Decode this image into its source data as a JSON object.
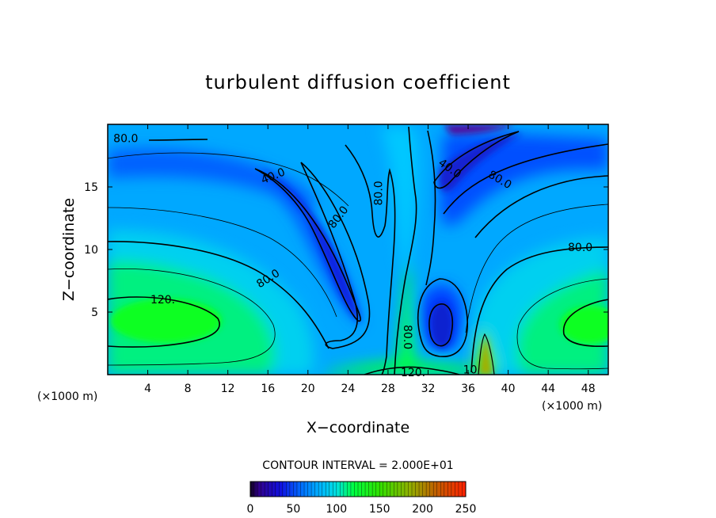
{
  "chart_data": {
    "type": "heatmap",
    "title": "turbulent diffusion coefficient",
    "xlabel": "X−coordinate",
    "ylabel": "Z−coordinate",
    "x_unit": "(×1000 m)",
    "y_unit": "(×1000 m)",
    "x_ticks": [
      4,
      8,
      12,
      16,
      20,
      24,
      28,
      32,
      36,
      40,
      44,
      48
    ],
    "y_ticks": [
      5,
      10,
      15
    ],
    "xlim": [
      0,
      50
    ],
    "ylim": [
      0,
      20
    ],
    "contour_interval_text": "CONTOUR INTERVAL = 2.000E+01",
    "colorbar": {
      "range": [
        0,
        250
      ],
      "ticks": [
        0,
        50,
        100,
        150,
        200,
        250
      ],
      "stops": [
        {
          "value": 0,
          "color": "#100020"
        },
        {
          "value": 10,
          "color": "#30008a"
        },
        {
          "value": 35,
          "color": "#1010e0"
        },
        {
          "value": 60,
          "color": "#0070ff"
        },
        {
          "value": 80,
          "color": "#00b0ff"
        },
        {
          "value": 100,
          "color": "#00e0e0"
        },
        {
          "value": 120,
          "color": "#00ff40"
        },
        {
          "value": 150,
          "color": "#30e000"
        },
        {
          "value": 185,
          "color": "#90b000"
        },
        {
          "value": 215,
          "color": "#c06000"
        },
        {
          "value": 250,
          "color": "#ff2000"
        }
      ]
    },
    "contour_labels": [
      {
        "text": "80.0",
        "x": 1.8,
        "z": 18.9,
        "angle": 0
      },
      {
        "text": "40.0",
        "x": 16.5,
        "z": 15.9,
        "angle": 22
      },
      {
        "text": "80.0",
        "x": 23.0,
        "z": 12.6,
        "angle": 52
      },
      {
        "text": "80.0",
        "x": 16.0,
        "z": 7.7,
        "angle": 32
      },
      {
        "text": "120.",
        "x": 5.5,
        "z": 6.0,
        "angle": 0
      },
      {
        "text": "80.0",
        "x": 27.0,
        "z": 14.5,
        "angle": 90
      },
      {
        "text": "40.0",
        "x": 34.2,
        "z": 16.5,
        "angle": -35
      },
      {
        "text": "80.0",
        "x": 39.2,
        "z": 15.6,
        "angle": -30
      },
      {
        "text": "80.0",
        "x": 47.2,
        "z": 10.2,
        "angle": 0
      },
      {
        "text": "80.0",
        "x": 30.0,
        "z": 3.0,
        "angle": -90
      },
      {
        "text": "120.",
        "x": 30.5,
        "z": 0.2,
        "angle": 0
      },
      {
        "text": "10",
        "x": 36.2,
        "z": 0.4,
        "angle": 0
      }
    ]
  }
}
